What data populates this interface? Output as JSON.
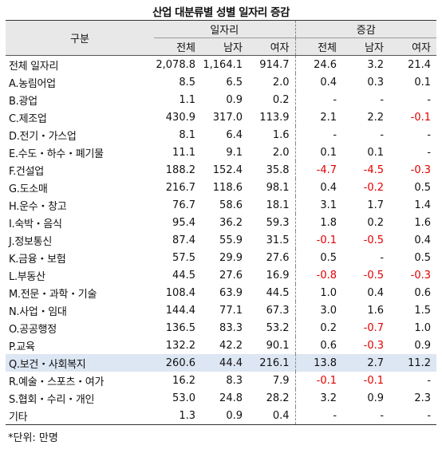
{
  "title": "산업 대분류별 성별 일자리 증감",
  "header": {
    "row_head": "구분",
    "group_jobs": "일자리",
    "group_change": "증감",
    "cols": [
      "전체",
      "남자",
      "여자",
      "전체",
      "남자",
      "여자"
    ]
  },
  "rows": [
    {
      "label": "전체 일자리",
      "vals": [
        "2,078.8",
        "1,164.1",
        "914.7",
        "24.6",
        "3.2",
        "21.4"
      ]
    },
    {
      "label": "A.농림어업",
      "vals": [
        "8.5",
        "6.5",
        "2.0",
        "0.4",
        "0.3",
        "0.1"
      ]
    },
    {
      "label": "B.광업",
      "vals": [
        "1.1",
        "0.9",
        "0.2",
        "-",
        "-",
        "-"
      ]
    },
    {
      "label": "C.제조업",
      "vals": [
        "430.9",
        "317.0",
        "113.9",
        "2.1",
        "2.2",
        "-0.1"
      ]
    },
    {
      "label": "D.전기・가스업",
      "vals": [
        "8.1",
        "6.4",
        "1.6",
        "-",
        "-",
        "-"
      ]
    },
    {
      "label": "E.수도・하수・폐기물",
      "vals": [
        "11.1",
        "9.1",
        "2.0",
        "0.1",
        "0.1",
        "-"
      ]
    },
    {
      "label": "F.건설업",
      "vals": [
        "188.2",
        "152.4",
        "35.8",
        "-4.7",
        "-4.5",
        "-0.3"
      ]
    },
    {
      "label": "G.도소매",
      "vals": [
        "216.7",
        "118.6",
        "98.1",
        "0.4",
        "-0.2",
        "0.5"
      ]
    },
    {
      "label": "H.운수・창고",
      "vals": [
        "76.7",
        "58.6",
        "18.1",
        "3.1",
        "1.7",
        "1.4"
      ]
    },
    {
      "label": "I.숙박・음식",
      "vals": [
        "95.4",
        "36.2",
        "59.3",
        "1.8",
        "0.2",
        "1.6"
      ]
    },
    {
      "label": "J.정보통신",
      "vals": [
        "87.4",
        "55.9",
        "31.5",
        "-0.1",
        "-0.5",
        "0.4"
      ]
    },
    {
      "label": "K.금융・보험",
      "vals": [
        "57.5",
        "29.9",
        "27.6",
        "0.5",
        "-",
        "0.5"
      ]
    },
    {
      "label": "L.부동산",
      "vals": [
        "44.5",
        "27.6",
        "16.9",
        "-0.8",
        "-0.5",
        "-0.3"
      ]
    },
    {
      "label": "M.전문・과학・기술",
      "vals": [
        "108.4",
        "63.9",
        "44.5",
        "1.0",
        "0.4",
        "0.6"
      ]
    },
    {
      "label": "N.사업・임대",
      "vals": [
        "144.4",
        "77.1",
        "67.3",
        "3.0",
        "1.6",
        "1.5"
      ]
    },
    {
      "label": "O.공공행정",
      "vals": [
        "136.5",
        "83.3",
        "53.2",
        "0.2",
        "-0.7",
        "1.0"
      ]
    },
    {
      "label": "P.교육",
      "vals": [
        "132.2",
        "42.2",
        "90.1",
        "0.6",
        "-0.3",
        "0.9"
      ]
    },
    {
      "label": "Q.보건・사회복지",
      "vals": [
        "260.6",
        "44.4",
        "216.1",
        "13.8",
        "2.7",
        "11.2"
      ]
    },
    {
      "label": "R.예술・스포츠・여가",
      "vals": [
        "16.2",
        "8.3",
        "7.9",
        "-0.1",
        "-0.1",
        "-"
      ]
    },
    {
      "label": "S.협회・수리・개인",
      "vals": [
        "53.0",
        "24.8",
        "28.2",
        "3.2",
        "0.9",
        "2.3"
      ]
    },
    {
      "label": "기타",
      "vals": [
        "1.3",
        "0.9",
        "0.4",
        "-",
        "-",
        "-"
      ]
    }
  ],
  "highlight_row": "Q.보건・사회복지",
  "colors": {
    "negative": "#e00000",
    "header_bg": "#e8e8e8",
    "highlight_bg": "#dde6f3"
  },
  "footnote": "*단위: 만명"
}
